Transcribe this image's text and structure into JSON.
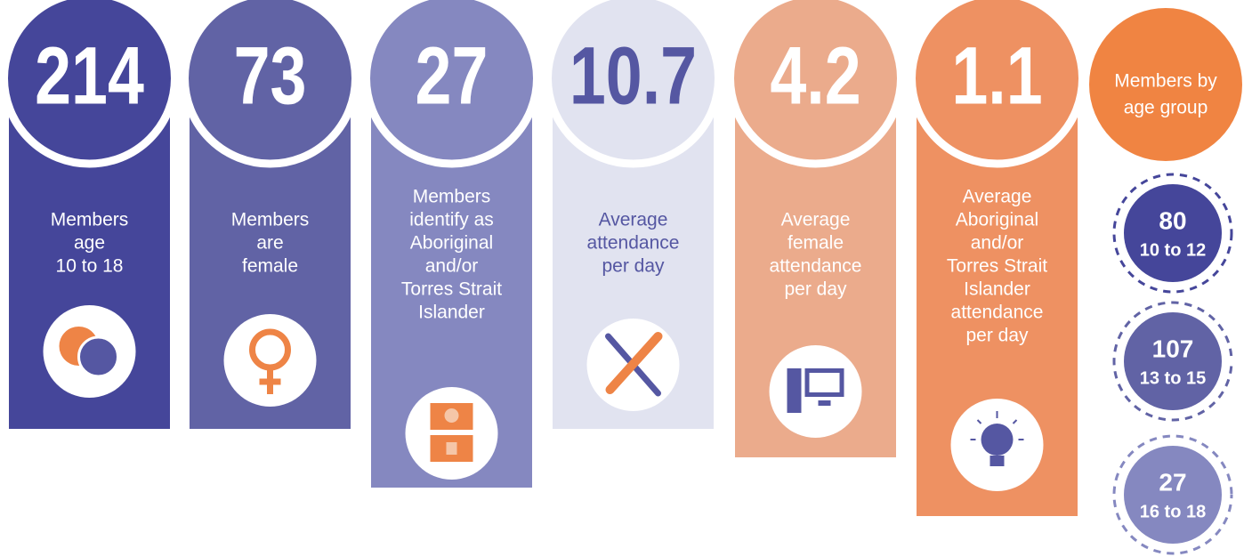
{
  "columns": [
    {
      "value": 214,
      "lines": [
        "Members",
        "age",
        "10 to 18"
      ]
    },
    {
      "value": 73,
      "lines": [
        "Members",
        "are",
        "female"
      ]
    },
    {
      "value": 27,
      "lines": [
        "Members",
        "identify as",
        "Aboriginal",
        "and/or",
        "Torres Strait",
        "Islander"
      ]
    },
    {
      "value": 10.7,
      "lines": [
        "Average",
        "attendance",
        "per day"
      ]
    },
    {
      "value": 4.2,
      "lines": [
        "Average",
        "female",
        "attendance",
        "per day"
      ]
    },
    {
      "value": 1.1,
      "lines": [
        "Average",
        "Aboriginal",
        "and/or",
        "Torres Strait",
        "Islander",
        "attendance",
        "per day"
      ]
    }
  ],
  "age_groups": {
    "title": [
      "Members by",
      "age group"
    ],
    "groups": [
      {
        "value": 80,
        "label": "10 to 12"
      },
      {
        "value": 107,
        "label": "13 to 15"
      },
      {
        "value": 27,
        "label": "16 to 18"
      }
    ]
  }
}
